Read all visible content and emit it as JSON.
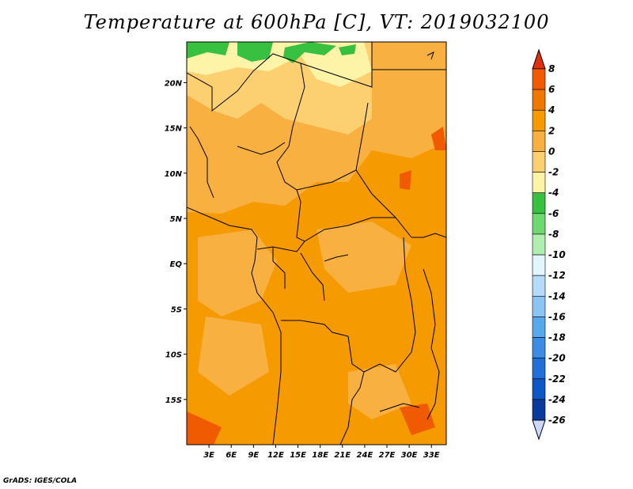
{
  "title": "Temperature at 600hPa [C], VT: 2019032100",
  "credit": "GrADS: IGES/COLA",
  "map": {
    "lat_ticks": [
      "20N",
      "15N",
      "10N",
      "5N",
      "EQ",
      "5S",
      "10S",
      "15S"
    ],
    "lat_values": [
      20,
      15,
      10,
      5,
      0,
      -5,
      -10,
      -15
    ],
    "lon_ticks": [
      "3E",
      "6E",
      "9E",
      "12E",
      "15E",
      "18E",
      "21E",
      "24E",
      "27E",
      "30E",
      "33E"
    ],
    "lon_values": [
      3,
      6,
      9,
      12,
      15,
      18,
      21,
      24,
      27,
      30,
      33
    ],
    "lon_range": [
      0,
      35
    ],
    "lat_range": [
      -20,
      24.5
    ]
  },
  "colorbar": {
    "labels": [
      "8",
      "6",
      "4",
      "2",
      "0",
      "-2",
      "-4",
      "-6",
      "-8",
      "-10",
      "-12",
      "-14",
      "-16",
      "-18",
      "-20",
      "-22",
      "-24",
      "-26"
    ],
    "colors": [
      "#e03010",
      "#f05a00",
      "#f07800",
      "#f59a00",
      "#f8b040",
      "#fcd070",
      "#fef4a8",
      "#38c040",
      "#70d870",
      "#b0eeb0",
      "#e2f6ff",
      "#b4dcfa",
      "#8cc4f4",
      "#5aa8ec",
      "#3c8ce4",
      "#2070d8",
      "#1056c4",
      "#0a3a9c",
      "#061a6e"
    ]
  }
}
